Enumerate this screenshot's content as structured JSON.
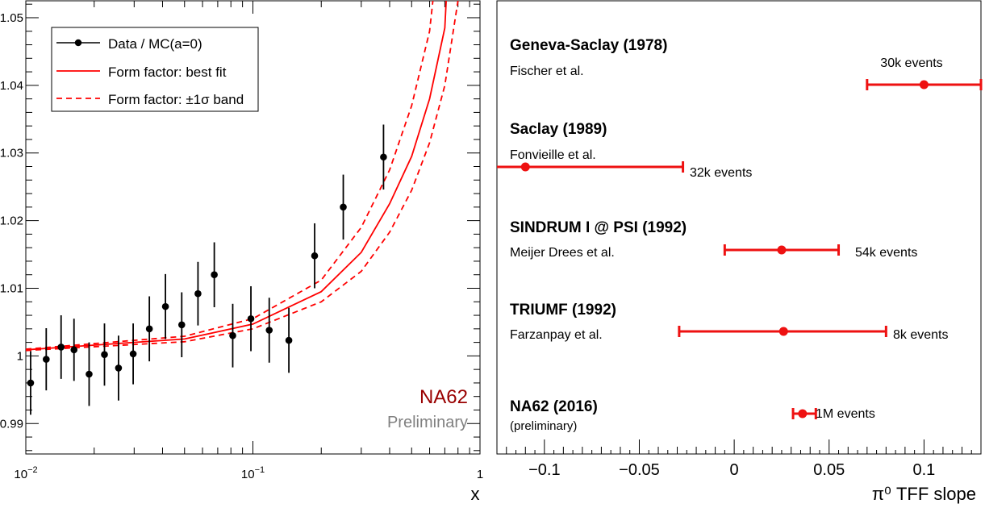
{
  "chart_data": [
    {
      "type": "scatter",
      "x_scale": "log",
      "xlabel": "x",
      "ylabel": "",
      "xlim": [
        0.01,
        1
      ],
      "ylim": [
        0.9855,
        1.0525
      ],
      "x_ticks": [
        {
          "value": 0.01,
          "label": "10",
          "exp": "−2"
        },
        {
          "value": 0.1,
          "label": "10",
          "exp": "−1"
        },
        {
          "value": 1,
          "label": "1",
          "exp": ""
        }
      ],
      "y_ticks": [
        {
          "value": 0.99,
          "label": "0.99"
        },
        {
          "value": 1.0,
          "label": "1"
        },
        {
          "value": 1.01,
          "label": "1.01"
        },
        {
          "value": 1.02,
          "label": "1.02"
        },
        {
          "value": 1.03,
          "label": "1.03"
        },
        {
          "value": 1.04,
          "label": "1.04"
        },
        {
          "value": 1.05,
          "label": "1.05"
        }
      ],
      "legend": {
        "placement": "top-left",
        "entries": [
          {
            "label": "Data / MC(a=0)",
            "style": "marker"
          },
          {
            "label": "Form factor: best fit",
            "style": "solid"
          },
          {
            "label": "Form factor: ±1σ band",
            "style": "dashed"
          }
        ]
      },
      "annotations": {
        "experiment": "NA62",
        "status": "Preliminary"
      },
      "colors": {
        "data": "#000000",
        "fit": "#ff0000",
        "experiment": "#990000",
        "status": "#808080"
      },
      "series": [
        {
          "name": "Data / MC(a=0)",
          "points": [
            {
              "x": 0.0105,
              "y": 0.996,
              "err": 0.0047
            },
            {
              "x": 0.0123,
              "y": 0.9995,
              "err": 0.0046
            },
            {
              "x": 0.0143,
              "y": 1.0013,
              "err": 0.0047
            },
            {
              "x": 0.0163,
              "y": 1.0009,
              "err": 0.0046
            },
            {
              "x": 0.019,
              "y": 0.9973,
              "err": 0.0047
            },
            {
              "x": 0.0222,
              "y": 1.0002,
              "err": 0.0046
            },
            {
              "x": 0.0256,
              "y": 0.9982,
              "err": 0.0048
            },
            {
              "x": 0.0297,
              "y": 1.0003,
              "err": 0.0045
            },
            {
              "x": 0.035,
              "y": 1.004,
              "err": 0.0048
            },
            {
              "x": 0.0412,
              "y": 1.0073,
              "err": 0.0048
            },
            {
              "x": 0.0486,
              "y": 1.0046,
              "err": 0.0048
            },
            {
              "x": 0.0573,
              "y": 1.0092,
              "err": 0.0047
            },
            {
              "x": 0.0676,
              "y": 1.012,
              "err": 0.0048
            },
            {
              "x": 0.0815,
              "y": 1.003,
              "err": 0.0047
            },
            {
              "x": 0.098,
              "y": 1.0055,
              "err": 0.0048
            },
            {
              "x": 0.118,
              "y": 1.0038,
              "err": 0.0048
            },
            {
              "x": 0.144,
              "y": 1.0023,
              "err": 0.0048
            },
            {
              "x": 0.187,
              "y": 1.0148,
              "err": 0.0048
            },
            {
              "x": 0.25,
              "y": 1.022,
              "err": 0.0048
            },
            {
              "x": 0.376,
              "y": 1.0294,
              "err": 0.0048
            }
          ]
        },
        {
          "name": "Form factor: best fit",
          "x": [
            0.01,
            0.05,
            0.1,
            0.2,
            0.3,
            0.4,
            0.5,
            0.6,
            0.7,
            0.71
          ],
          "y": [
            1.0009,
            1.0025,
            1.0047,
            1.0095,
            1.0153,
            1.0225,
            1.0295,
            1.038,
            1.0485,
            1.0525
          ]
        },
        {
          "name": "Form factor: ±1σ band (upper)",
          "x": [
            0.01,
            0.05,
            0.1,
            0.2,
            0.3,
            0.4,
            0.5,
            0.6,
            0.62
          ],
          "y": [
            1.001,
            1.0029,
            1.0055,
            1.0112,
            1.019,
            1.0275,
            1.037,
            1.048,
            1.0525
          ]
        },
        {
          "name": "Form factor: ±1σ band (lower)",
          "x": [
            0.01,
            0.05,
            0.1,
            0.2,
            0.3,
            0.4,
            0.5,
            0.6,
            0.7,
            0.8
          ],
          "y": [
            1.0008,
            1.0021,
            1.004,
            1.008,
            1.0125,
            1.0183,
            1.0245,
            1.0315,
            1.04,
            1.0525
          ]
        }
      ]
    },
    {
      "type": "scatter",
      "xlabel": "π⁰ TFF slope",
      "xlim": [
        -0.125,
        0.13
      ],
      "x_ticks": [
        {
          "value": -0.1,
          "label": "−0.1"
        },
        {
          "value": -0.05,
          "label": "−0.05"
        },
        {
          "value": 0,
          "label": "0"
        },
        {
          "value": 0.05,
          "label": "0.05"
        },
        {
          "value": 0.1,
          "label": "0.1"
        }
      ],
      "color": "#ee1111",
      "measurements": [
        {
          "experiment": "Geneva-Saclay (1978)",
          "authors": "Fischer et al.",
          "value": 0.1,
          "lo": 0.07,
          "hi": 0.13,
          "events": "30k events"
        },
        {
          "experiment": "Saclay (1989)",
          "authors": "Fonvieille et al.",
          "value": -0.11,
          "lo": -0.15,
          "hi": -0.027,
          "events": "32k events"
        },
        {
          "experiment": "SINDRUM I @ PSI (1992)",
          "authors": "Meijer Drees et al.",
          "value": 0.025,
          "lo": -0.005,
          "hi": 0.055,
          "events": "54k events"
        },
        {
          "experiment": "TRIUMF (1992)",
          "authors": "Farzanpay et al.",
          "value": 0.026,
          "lo": -0.029,
          "hi": 0.08,
          "events": "8k events"
        },
        {
          "experiment": "NA62 (2016)",
          "authors": "(preliminary)",
          "value": 0.036,
          "lo": 0.031,
          "hi": 0.043,
          "events": "1M events"
        }
      ]
    }
  ]
}
